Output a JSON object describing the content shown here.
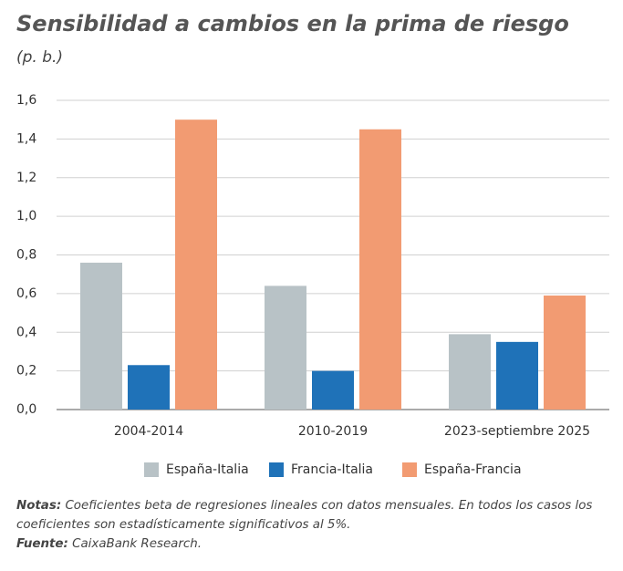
{
  "chart_data": {
    "type": "bar",
    "title": "Sensibilidad a cambios en la prima de riesgo",
    "subtitle": "(p. b.)",
    "categories": [
      "2004-2014",
      "2010-2019",
      "2023-septiembre 2025"
    ],
    "series": [
      {
        "name": "España-Italia",
        "color": "#b8c2c6",
        "values": [
          0.76,
          0.64,
          0.39
        ]
      },
      {
        "name": "Francia-Italia",
        "color": "#1f72b8",
        "values": [
          0.23,
          0.2,
          0.35
        ]
      },
      {
        "name": "España-Francia",
        "color": "#f29b72",
        "values": [
          1.5,
          1.45,
          0.59
        ]
      }
    ],
    "ylim": [
      0,
      1.6
    ],
    "yticks": [
      {
        "value": 0,
        "label": "0,0"
      },
      {
        "value": 0.2,
        "label": "0,2"
      },
      {
        "value": 0.4,
        "label": "0,4"
      },
      {
        "value": 0.6,
        "label": "0,6"
      },
      {
        "value": 0.8,
        "label": "0,8"
      },
      {
        "value": 1.0,
        "label": "1,0"
      },
      {
        "value": 1.2,
        "label": "1,2"
      },
      {
        "value": 1.4,
        "label": "1,4"
      },
      {
        "value": 1.6,
        "label": "1,6"
      }
    ],
    "grid": true,
    "legend": "bottom"
  },
  "notes": {
    "label": "Notas:",
    "text": "Coeficientes beta de regresiones lineales con datos mensuales. En todos los casos los coeficientes son estadísticamente significativos al 5%."
  },
  "source": {
    "label": "Fuente:",
    "text": "CaixaBank Research."
  }
}
